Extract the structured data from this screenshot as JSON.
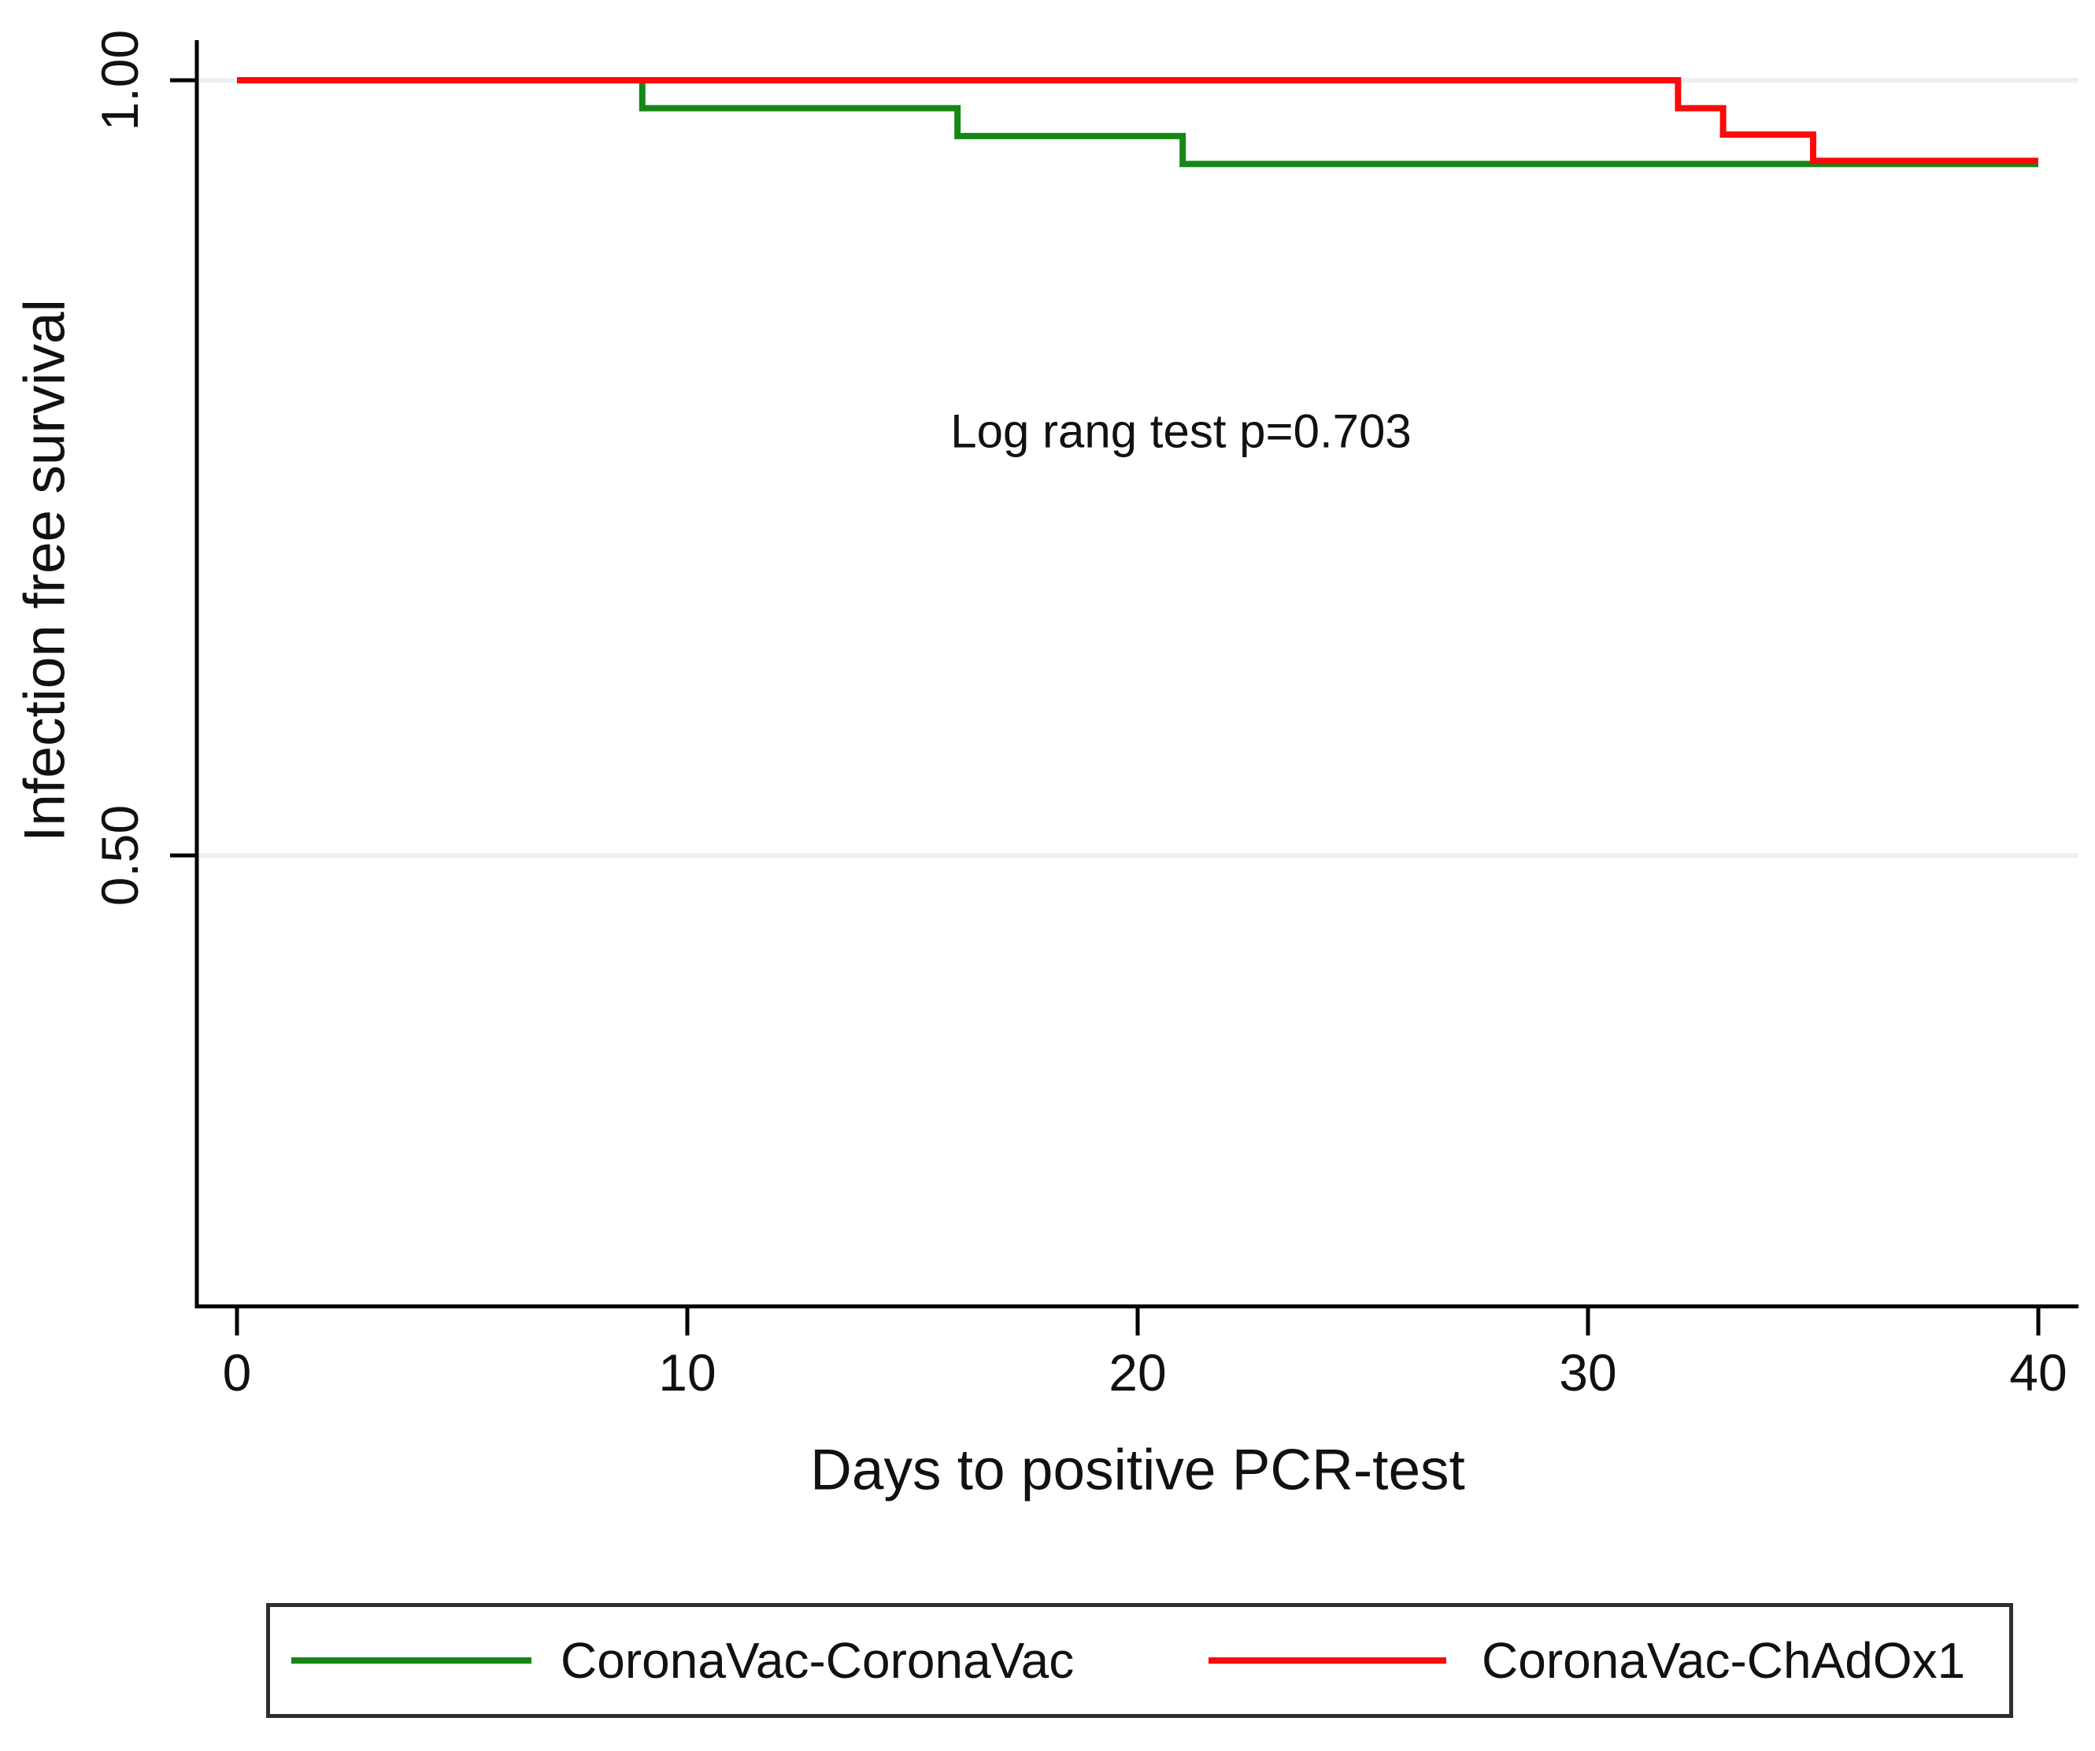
{
  "chart_data": {
    "type": "line",
    "subtype": "kaplan-meier-step",
    "title": "",
    "xlabel": "Days to positive PCR-test",
    "ylabel": "Infection free survival",
    "annotation": "Log rang test p=0.703",
    "x_ticks": [
      0,
      10,
      20,
      30,
      40
    ],
    "x_tick_labels": [
      "0",
      "10",
      "20",
      "30",
      "40"
    ],
    "y_ticks": [
      1.0,
      0.5
    ],
    "y_tick_labels": [
      "1.00",
      "0.50"
    ],
    "xlim": [
      -0.9,
      40.9
    ],
    "ylim": [
      0.21,
      1.026
    ],
    "grid": true,
    "gridline_color": "#eaf1f3",
    "axis_color": "#000000",
    "legend_position": "bottom",
    "series": [
      {
        "name": "CoronaVac-CoronaVac",
        "color": "#168716",
        "points": [
          [
            0,
            1.0
          ],
          [
            9,
            0.982
          ],
          [
            16,
            0.964
          ],
          [
            21,
            0.946
          ],
          [
            40,
            0.946
          ]
        ]
      },
      {
        "name": "CoronaVac-ChAdOx1",
        "color": "#fb0a0a",
        "points": [
          [
            0,
            1.0
          ],
          [
            32,
            0.982
          ],
          [
            33,
            0.965
          ],
          [
            35,
            0.948
          ],
          [
            40,
            0.948
          ]
        ]
      }
    ]
  }
}
